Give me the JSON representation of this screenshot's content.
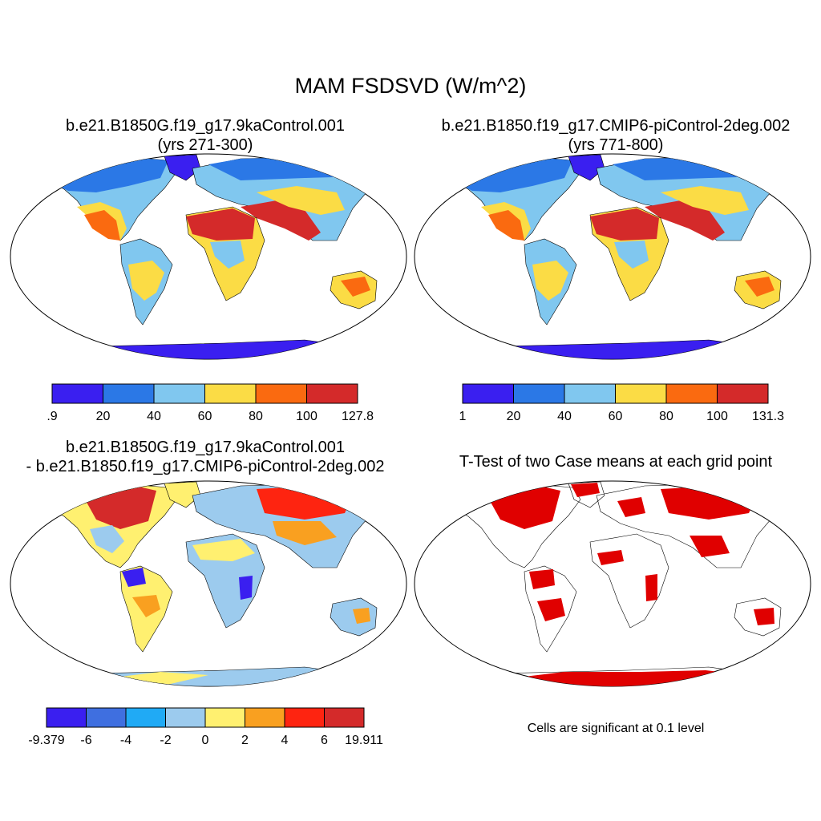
{
  "title": "MAM FSDSVD (W/m^2)",
  "panels": [
    {
      "id": "case1",
      "title_line1": "b.e21.B1850G.f19_g17.9kaControl.001",
      "title_line2": "(yrs 271-300)",
      "colorbar": {
        "labels": [
          ".9",
          "20",
          "40",
          "60",
          "80",
          "100",
          "127.8"
        ],
        "colors": [
          "#3a1ff0",
          "#2b78e6",
          "#80c7ef",
          "#fbdc45",
          "#fa6a10",
          "#d42a2a"
        ]
      }
    },
    {
      "id": "case2",
      "title_line1": "b.e21.B1850.f19_g17.CMIP6-piControl-2deg.002",
      "title_line2": "(yrs 771-800)",
      "colorbar": {
        "labels": [
          "1",
          "20",
          "40",
          "60",
          "80",
          "100",
          "131.3"
        ],
        "colors": [
          "#3a1ff0",
          "#2b78e6",
          "#80c7ef",
          "#fbdc45",
          "#fa6a10",
          "#d42a2a"
        ]
      }
    },
    {
      "id": "difference",
      "title_line1": "b.e21.B1850G.f19_g17.9kaControl.001",
      "title_line2": "- b.e21.B1850.f19_g17.CMIP6-piControl-2deg.002",
      "colorbar": {
        "labels": [
          "-9.379",
          "-6",
          "-4",
          "-2",
          "0",
          "2",
          "4",
          "6",
          "19.911"
        ],
        "colors": [
          "#3a1ff0",
          "#3f6fe0",
          "#20aaf5",
          "#9ccbee",
          "#fff070",
          "#f9a020",
          "#fe2410",
          "#d42a2a"
        ]
      }
    },
    {
      "id": "ttest",
      "title_line1": "T-Test of two Case means at each grid point",
      "note": "Cells are significant at 0.1 level",
      "color": "#e00000"
    }
  ]
}
